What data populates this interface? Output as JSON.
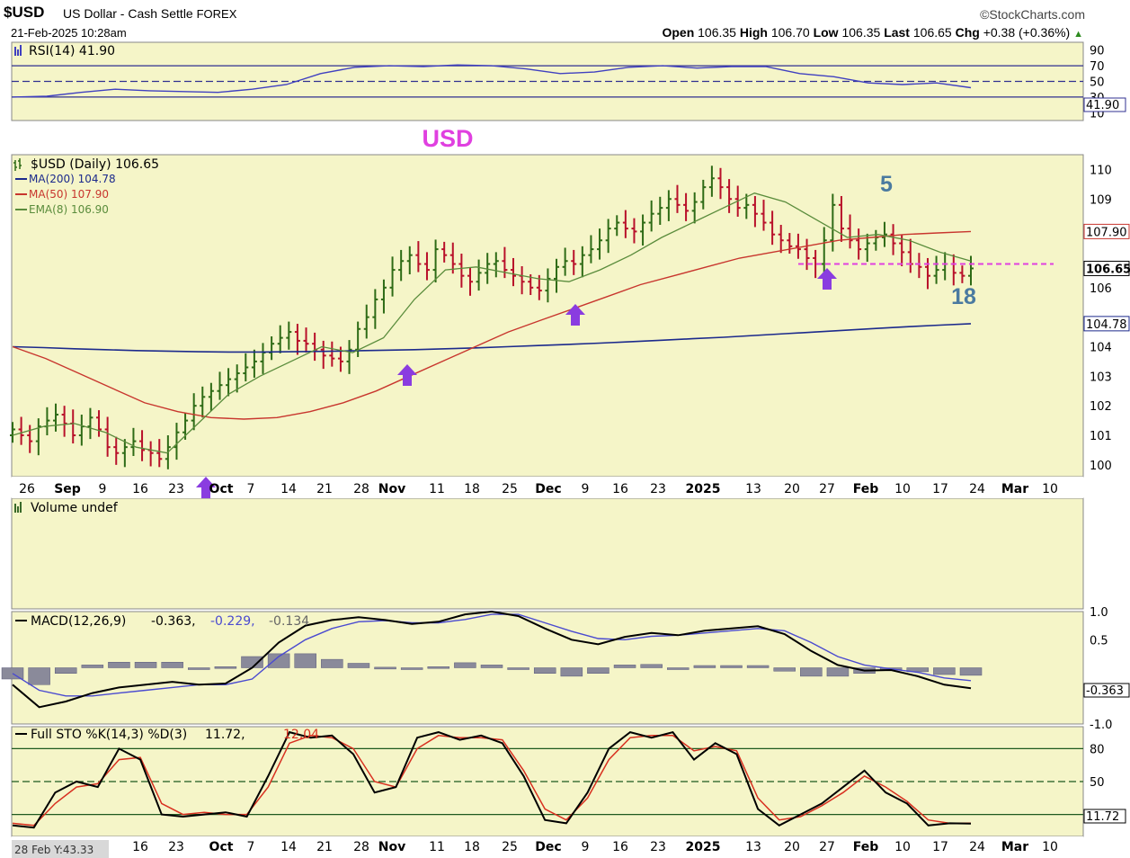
{
  "header": {
    "symbol": "$USD",
    "description": "US Dollar - Cash Settle",
    "exchange": "FOREX",
    "date": "21-Feb-2025 10:28am",
    "brand": "©StockCharts.com",
    "quote": {
      "open_label": "Open",
      "open": "106.35",
      "high_label": "High",
      "high": "106.70",
      "low_label": "Low",
      "low": "106.35",
      "last_label": "Last",
      "last": "106.65",
      "chg_label": "Chg",
      "chg": "+0.38 (+0.36%)"
    }
  },
  "colors": {
    "background": "#f5f5c8",
    "price_up": "#2e6b16",
    "price_down": "#b8102a",
    "ma200": "#1c2a8c",
    "ma50": "#c8362e",
    "ema8": "#5a8c3c",
    "rsi": "#4040c0",
    "macd_line": "#000000",
    "macd_signal": "#4a4ad0",
    "macd_hist": "#8a8a9a",
    "sto_k": "#000000",
    "sto_d": "#d83020",
    "annotation_magenta": "#e040e0",
    "arrow": "#8a3ce0",
    "wave_label": "#4a7aa0"
  },
  "chart_data": [
    {
      "type": "line",
      "name": "rsi-panel",
      "label": "RSI(14) 41.90",
      "ylim": [
        0,
        100
      ],
      "ticks": [
        "90",
        "70",
        "50",
        "30",
        "10"
      ],
      "levels": [
        70,
        50,
        30
      ],
      "last_value": "41.90",
      "x": [
        0,
        5,
        10,
        15,
        20,
        25,
        30,
        35,
        40,
        45,
        50,
        55,
        60,
        65,
        70,
        75,
        80,
        85,
        90,
        95,
        100,
        105,
        110,
        115,
        120,
        125,
        130,
        135,
        138
      ],
      "values": [
        30,
        31,
        36,
        40,
        38,
        37,
        36,
        40,
        46,
        60,
        68,
        70,
        69,
        71,
        70,
        66,
        60,
        62,
        68,
        70,
        67,
        69,
        69,
        60,
        56,
        48,
        46,
        48,
        42
      ]
    },
    {
      "type": "bar",
      "name": "price-panel",
      "label": "$USD (Daily) 106.65",
      "annotation": "USD",
      "wave_labels": [
        "5",
        "18"
      ],
      "legend": [
        {
          "name": "MA(200) 104.78"
        },
        {
          "name": "MA(50) 107.90"
        },
        {
          "name": "EMA(8) 106.90"
        }
      ],
      "ylim": [
        99.6,
        110.5
      ],
      "yticks": [
        "110",
        "109",
        "106",
        "104",
        "103",
        "102",
        "101",
        "100"
      ],
      "right_tags": {
        "ma50": "107.90",
        "last": "106.65",
        "ma200": "104.78"
      },
      "support_level": 106.8,
      "arrows_at_x": [
        28,
        56,
        80,
        118
      ],
      "ohlc_close": [
        101.2,
        101.0,
        100.8,
        101.3,
        101.5,
        101.7,
        101.4,
        101.0,
        101.3,
        101.6,
        101.2,
        100.6,
        100.4,
        100.6,
        100.8,
        100.5,
        100.4,
        100.2,
        100.6,
        101.1,
        101.5,
        102.0,
        102.3,
        102.5,
        102.7,
        102.9,
        103.1,
        103.3,
        103.5,
        103.8,
        104.1,
        104.3,
        104.5,
        104.2,
        104.1,
        103.9,
        103.7,
        103.6,
        103.5,
        103.9,
        104.6,
        105.0,
        105.6,
        106.0,
        106.6,
        106.9,
        107.1,
        106.8,
        106.6,
        107.3,
        107.1,
        106.8,
        106.4,
        106.2,
        106.5,
        106.8,
        106.9,
        106.6,
        106.4,
        106.2,
        106.0,
        105.9,
        106.3,
        106.7,
        106.9,
        106.8,
        107.1,
        107.3,
        107.6,
        108.0,
        108.2,
        108.0,
        107.9,
        108.2,
        108.5,
        108.7,
        109.0,
        108.8,
        108.6,
        108.9,
        109.4,
        109.7,
        109.4,
        109.0,
        108.7,
        108.8,
        108.5,
        108.2,
        107.8,
        107.6,
        107.4,
        107.3,
        107.0,
        106.8,
        107.6,
        108.8,
        108.0,
        107.6,
        107.3,
        107.5,
        107.7,
        107.8,
        107.5,
        107.2,
        106.8,
        106.7,
        106.4,
        106.6,
        106.8,
        106.5,
        106.4,
        106.65
      ],
      "ma200": [
        104.0,
        103.97,
        103.93,
        103.9,
        103.87,
        103.85,
        103.83,
        103.82,
        103.82,
        103.83,
        103.84,
        103.86,
        103.88,
        103.9,
        103.93,
        103.96,
        104.0,
        104.04,
        104.08,
        104.12,
        104.17,
        104.22,
        104.27,
        104.32,
        104.38,
        104.44,
        104.5,
        104.56,
        104.62,
        104.68,
        104.73,
        104.78
      ],
      "ma50": [
        104.0,
        103.6,
        103.1,
        102.6,
        102.1,
        101.8,
        101.6,
        101.55,
        101.6,
        101.8,
        102.1,
        102.5,
        103.0,
        103.5,
        104.0,
        104.5,
        104.9,
        105.3,
        105.7,
        106.1,
        106.4,
        106.7,
        107.0,
        107.2,
        107.4,
        107.6,
        107.7,
        107.8,
        107.85,
        107.9
      ],
      "ema8": [
        101.0,
        101.3,
        101.4,
        101.1,
        100.6,
        100.4,
        101.4,
        102.4,
        103.0,
        103.5,
        104.0,
        103.8,
        104.3,
        105.6,
        106.6,
        106.7,
        106.5,
        106.3,
        106.2,
        106.6,
        107.1,
        107.7,
        108.2,
        108.7,
        109.2,
        108.9,
        108.3,
        107.7,
        107.8,
        107.6,
        107.2,
        106.9
      ]
    },
    {
      "type": "bar",
      "name": "volume-panel",
      "label": "Volume undef",
      "values": []
    },
    {
      "type": "line",
      "name": "macd-panel",
      "label": "MACD(12,26,9)",
      "values_text": [
        "-0.363,",
        "-0.229,",
        "-0.134"
      ],
      "ylim": [
        -1.0,
        1.0
      ],
      "yticks": [
        "1.0",
        "0.5",
        "-1.0"
      ],
      "right_tags": [
        "-0.363"
      ],
      "macd": [
        -0.3,
        -0.7,
        -0.6,
        -0.45,
        -0.35,
        -0.3,
        -0.25,
        -0.3,
        -0.28,
        0.0,
        0.45,
        0.75,
        0.85,
        0.9,
        0.85,
        0.78,
        0.82,
        0.95,
        1.0,
        0.92,
        0.7,
        0.5,
        0.42,
        0.55,
        0.62,
        0.58,
        0.66,
        0.7,
        0.74,
        0.6,
        0.3,
        0.05,
        -0.05,
        -0.04,
        -0.15,
        -0.3,
        -0.363
      ],
      "signal": [
        -0.1,
        -0.4,
        -0.5,
        -0.5,
        -0.45,
        -0.4,
        -0.35,
        -0.3,
        -0.3,
        -0.2,
        0.2,
        0.5,
        0.7,
        0.82,
        0.84,
        0.8,
        0.8,
        0.86,
        0.95,
        0.95,
        0.8,
        0.65,
        0.52,
        0.5,
        0.56,
        0.58,
        0.62,
        0.66,
        0.7,
        0.66,
        0.45,
        0.2,
        0.05,
        -0.02,
        -0.08,
        -0.18,
        -0.229
      ],
      "histogram": [
        -0.2,
        -0.3,
        -0.1,
        0.05,
        0.1,
        0.1,
        0.1,
        0.0,
        0.02,
        0.2,
        0.25,
        0.25,
        0.15,
        0.08,
        0.01,
        -0.02,
        0.02,
        0.09,
        0.05,
        -0.03,
        -0.1,
        -0.15,
        -0.1,
        0.05,
        0.06,
        0.0,
        0.04,
        0.04,
        0.04,
        -0.06,
        -0.15,
        -0.15,
        -0.1,
        -0.02,
        -0.07,
        -0.12,
        -0.134
      ]
    },
    {
      "type": "line",
      "name": "stochastic-panel",
      "label": "Full STO %K(14,3) %D(3)",
      "values_text": [
        "11.72,",
        "12.04"
      ],
      "ylim": [
        0,
        100
      ],
      "yticks": [
        "80",
        "50"
      ],
      "levels": [
        80,
        50,
        20
      ],
      "right_tags": [
        "11.72"
      ],
      "k": [
        10,
        8,
        40,
        50,
        45,
        80,
        70,
        20,
        18,
        20,
        22,
        18,
        55,
        95,
        90,
        92,
        75,
        40,
        45,
        90,
        95,
        88,
        92,
        85,
        55,
        15,
        12,
        40,
        80,
        95,
        90,
        95,
        70,
        85,
        75,
        25,
        10,
        20,
        30,
        45,
        60,
        40,
        30,
        10,
        12,
        11.72
      ],
      "d": [
        12,
        10,
        30,
        45,
        48,
        70,
        72,
        30,
        20,
        22,
        20,
        20,
        45,
        85,
        92,
        90,
        80,
        50,
        45,
        80,
        92,
        90,
        90,
        88,
        60,
        25,
        15,
        35,
        70,
        90,
        92,
        92,
        78,
        82,
        78,
        35,
        15,
        18,
        28,
        40,
        55,
        45,
        32,
        15,
        12,
        12.04
      ]
    }
  ],
  "x_axis": {
    "labels": [
      "26",
      "Sep",
      "9",
      "16",
      "23",
      "Oct",
      "7",
      "14",
      "21",
      "28",
      "Nov",
      "11",
      "18",
      "25",
      "Dec",
      "9",
      "16",
      "23",
      "2025",
      "13",
      "20",
      "27",
      "Feb",
      "10",
      "17",
      "24",
      "Mar",
      "10"
    ],
    "bold": [
      "Sep",
      "Oct",
      "Nov",
      "Dec",
      "2025",
      "Feb",
      "Mar"
    ],
    "labels_bottom": [
      "16",
      "23",
      "Oct",
      "7",
      "14",
      "21",
      "28",
      "Nov",
      "11",
      "18",
      "25",
      "Dec",
      "9",
      "16",
      "23",
      "2025",
      "13",
      "20",
      "27",
      "Feb",
      "10",
      "17",
      "24",
      "Mar",
      "10"
    ],
    "bottom_note": "28 Feb Y:43.33"
  }
}
